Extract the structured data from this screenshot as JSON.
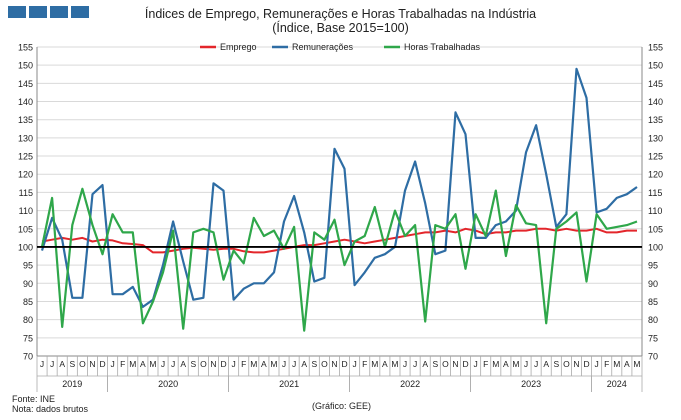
{
  "header": {
    "title_line1": "Índices de Emprego, Remunerações e Horas Trabalhadas na Indústria",
    "title_line2": "(Índice, Base 2015=100)"
  },
  "footer": {
    "source": "Fonte: INE",
    "note": "Nota: dados brutos",
    "credit": "(Gráfico: GEE)"
  },
  "chart_data": {
    "type": "line",
    "title": "Índices de Emprego, Remunerações e Horas Trabalhadas na Indústria (Índice, Base 2015=100)",
    "ylim": [
      70,
      155
    ],
    "yticks": [
      70,
      75,
      80,
      85,
      90,
      95,
      100,
      105,
      110,
      115,
      120,
      125,
      130,
      135,
      140,
      145,
      150,
      155
    ],
    "reference_line": 100,
    "grid": true,
    "legend_position": "top",
    "month_labels": [
      "J",
      "J",
      "A",
      "S",
      "O",
      "N",
      "D",
      "J",
      "F",
      "M",
      "A",
      "M",
      "J",
      "J",
      "A",
      "S",
      "O",
      "N",
      "D",
      "J",
      "F",
      "M",
      "A",
      "M",
      "J",
      "J",
      "A",
      "S",
      "O",
      "N",
      "D",
      "J",
      "F",
      "M",
      "A",
      "M",
      "J",
      "J",
      "A",
      "S",
      "O",
      "N",
      "D",
      "J",
      "F",
      "M",
      "A",
      "M",
      "J",
      "J",
      "A",
      "S",
      "O",
      "N",
      "D",
      "J",
      "F",
      "M",
      "A",
      "M"
    ],
    "years": [
      {
        "label": "2019",
        "start": 0,
        "end": 7
      },
      {
        "label": "2020",
        "start": 7,
        "end": 19
      },
      {
        "label": "2021",
        "start": 19,
        "end": 31
      },
      {
        "label": "2022",
        "start": 31,
        "end": 43
      },
      {
        "label": "2023",
        "start": 43,
        "end": 55
      },
      {
        "label": "2024",
        "start": 55,
        "end": 60
      }
    ],
    "series": [
      {
        "name": "Emprego",
        "color": "#e3262b",
        "values": [
          101.5,
          102,
          102.5,
          102,
          102.5,
          101.5,
          102,
          101.8,
          101,
          100.8,
          100.5,
          98.5,
          98.5,
          99,
          99.5,
          99.8,
          99.5,
          99.2,
          99.5,
          99.5,
          98.8,
          98.5,
          98.5,
          99,
          99.5,
          100,
          100.5,
          100.5,
          101,
          101.5,
          102,
          101.5,
          101,
          101.5,
          102,
          102.5,
          103,
          103.5,
          104,
          104,
          104.5,
          104,
          105,
          104.5,
          103.5,
          104,
          104,
          104.5,
          104.5,
          105,
          105,
          104.5,
          105,
          104.5,
          104.5,
          105,
          104,
          104,
          104.5,
          104.5
        ]
      },
      {
        "name": "Remunerações",
        "color": "#2e6da4",
        "values": [
          99,
          108,
          102,
          86,
          86,
          114.5,
          117,
          87,
          87,
          89,
          83.5,
          85.5,
          95,
          107,
          96,
          85.5,
          86,
          117.5,
          115.5,
          85.5,
          88.5,
          90,
          90,
          93,
          107,
          114,
          104,
          90.5,
          91.5,
          127,
          121.5,
          89.5,
          93,
          97,
          98,
          100,
          115.5,
          123.5,
          112,
          98,
          99,
          137,
          131,
          102.5,
          102.5,
          106,
          107,
          110,
          126,
          133.5,
          120,
          105.5,
          109,
          149,
          141,
          109.5,
          110.5,
          113.5,
          114.5,
          116.5
        ]
      },
      {
        "name": "Horas Trabalhadas",
        "color": "#2fa74a",
        "values": [
          100,
          113.5,
          78,
          106,
          116,
          106,
          98,
          109,
          104,
          104,
          79,
          85,
          93,
          104.5,
          77.5,
          104,
          105,
          104,
          91,
          99,
          95.5,
          108,
          103,
          104.5,
          99.5,
          105.5,
          77,
          104,
          102,
          107.5,
          95,
          101.5,
          103,
          111,
          100,
          110,
          103,
          106,
          79.5,
          106,
          105,
          109,
          94,
          109,
          103,
          115.5,
          97.5,
          111.5,
          106.5,
          106,
          79,
          105,
          107,
          109.5,
          90.5,
          109,
          105,
          105.5,
          106,
          107
        ]
      }
    ]
  }
}
